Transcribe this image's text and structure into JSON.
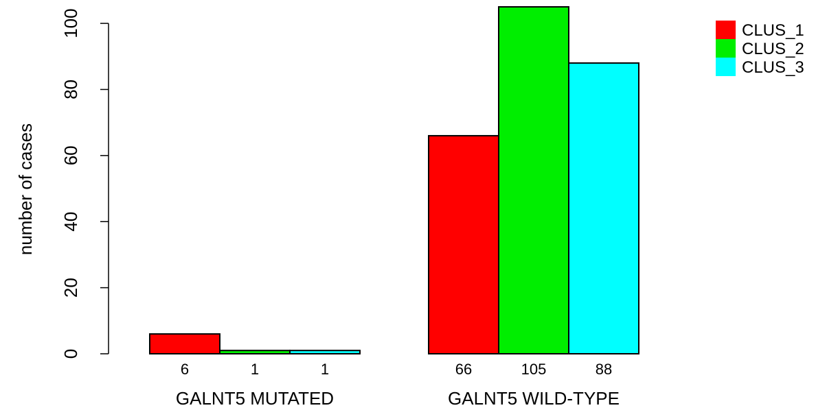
{
  "chart_data": {
    "type": "bar",
    "categories": [
      "GALNT5 MUTATED",
      "GALNT5 WILD-TYPE"
    ],
    "series": [
      {
        "name": "CLUS_1",
        "color": "#ff0000",
        "values": [
          6,
          66
        ]
      },
      {
        "name": "CLUS_2",
        "color": "#00ee00",
        "values": [
          1,
          105
        ]
      },
      {
        "name": "CLUS_3",
        "color": "#00ffff",
        "values": [
          1,
          88
        ]
      }
    ],
    "ylabel": "number of cases",
    "ylim": [
      0,
      105
    ],
    "yticks": [
      0,
      20,
      40,
      60,
      80,
      100
    ],
    "bar_labels": [
      [
        "6",
        "1",
        "1"
      ],
      [
        "66",
        "105",
        "88"
      ]
    ],
    "grid": false,
    "legend_position": "top-right"
  }
}
